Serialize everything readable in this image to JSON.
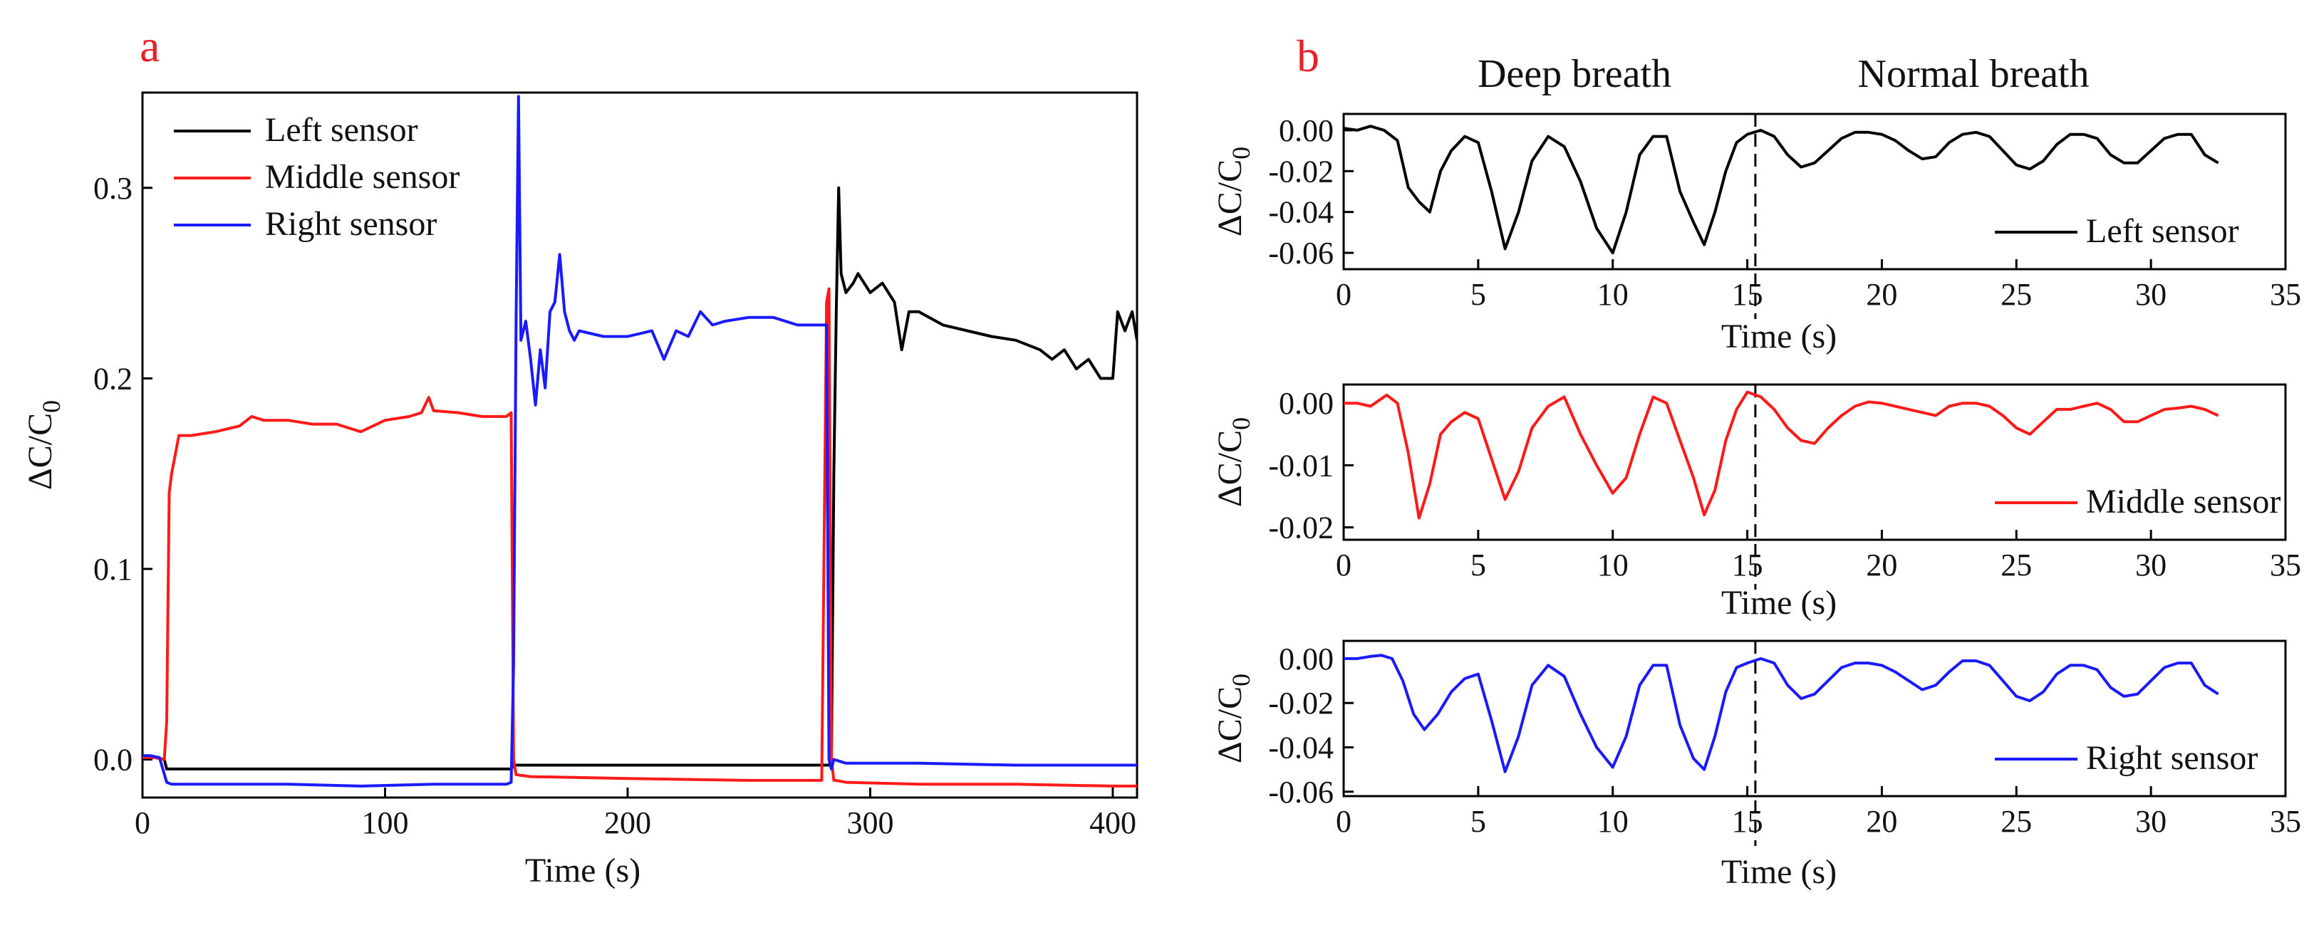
{
  "colors": {
    "left": "#000000",
    "middle": "#ff1a1a",
    "right": "#1a1aff",
    "label": "#e8202a"
  },
  "chart_data": [
    {
      "id": "a",
      "panel_label": "a",
      "type": "line",
      "xlabel": "Time (s)",
      "ylabel": "ΔC/C",
      "ylabel_sub": "0",
      "xlim": [
        0,
        410
      ],
      "ylim": [
        -0.02,
        0.35
      ],
      "xticks": [
        0,
        100,
        200,
        300,
        400
      ],
      "xtick_labels": [
        "0",
        "100",
        "200",
        "300",
        "400"
      ],
      "yticks": [
        0.0,
        0.1,
        0.2,
        0.3
      ],
      "ytick_labels": [
        "0.0",
        "0.1",
        "0.2",
        "0.3"
      ],
      "legend": [
        "Left sensor",
        "Middle sensor",
        "Right sensor"
      ],
      "legend_position": "top-left",
      "series": [
        {
          "name": "Left sensor",
          "color_key": "left",
          "x": [
            0,
            5,
            9,
            10,
            11,
            60,
            120,
            152,
            153,
            154,
            200,
            250,
            283,
            284,
            285,
            286,
            287,
            288,
            290,
            293,
            295,
            300,
            305,
            310,
            313,
            316,
            320,
            330,
            340,
            350,
            360,
            370,
            375,
            380,
            385,
            390,
            395,
            400,
            402,
            405,
            408,
            410
          ],
          "y": [
            0.001,
            0.001,
            0.0,
            -0.005,
            -0.005,
            -0.005,
            -0.005,
            -0.005,
            -0.003,
            -0.003,
            -0.003,
            -0.003,
            -0.003,
            0.0,
            0.15,
            0.235,
            0.3,
            0.255,
            0.245,
            0.25,
            0.255,
            0.245,
            0.25,
            0.24,
            0.215,
            0.235,
            0.235,
            0.228,
            0.225,
            0.222,
            0.22,
            0.215,
            0.21,
            0.215,
            0.205,
            0.21,
            0.2,
            0.2,
            0.235,
            0.225,
            0.235,
            0.22
          ]
        },
        {
          "name": "Middle sensor",
          "color_key": "middle",
          "x": [
            0,
            5,
            9,
            10,
            11,
            12,
            15,
            20,
            30,
            40,
            45,
            50,
            60,
            70,
            80,
            90,
            100,
            110,
            115,
            118,
            120,
            130,
            140,
            150,
            152,
            153,
            154,
            160,
            200,
            250,
            280,
            282,
            283,
            284,
            285,
            286,
            290,
            320,
            360,
            400,
            410
          ],
          "y": [
            0.001,
            0.001,
            0.0,
            0.02,
            0.14,
            0.15,
            0.17,
            0.17,
            0.172,
            0.175,
            0.18,
            0.178,
            0.178,
            0.176,
            0.176,
            0.172,
            0.178,
            0.18,
            0.182,
            0.19,
            0.183,
            0.182,
            0.18,
            0.18,
            0.182,
            0.0,
            -0.008,
            -0.009,
            -0.01,
            -0.011,
            -0.011,
            0.24,
            0.247,
            0.0,
            -0.011,
            -0.011,
            -0.012,
            -0.013,
            -0.013,
            -0.014,
            -0.014
          ]
        },
        {
          "name": "Right sensor",
          "color_key": "right",
          "x": [
            0,
            3,
            7,
            10,
            12,
            30,
            60,
            90,
            120,
            150,
            152,
            153,
            154,
            155,
            156,
            158,
            160,
            162,
            164,
            166,
            168,
            170,
            172,
            174,
            176,
            178,
            180,
            190,
            200,
            210,
            215,
            220,
            225,
            230,
            235,
            240,
            250,
            260,
            270,
            280,
            282,
            283,
            284,
            285,
            290,
            320,
            360,
            400,
            410
          ],
          "y": [
            0.002,
            0.002,
            0.001,
            -0.012,
            -0.013,
            -0.013,
            -0.013,
            -0.014,
            -0.013,
            -0.013,
            -0.012,
            0.05,
            0.23,
            0.348,
            0.22,
            0.23,
            0.21,
            0.186,
            0.215,
            0.195,
            0.235,
            0.24,
            0.265,
            0.235,
            0.225,
            0.22,
            0.225,
            0.222,
            0.222,
            0.225,
            0.21,
            0.225,
            0.222,
            0.235,
            0.228,
            0.23,
            0.232,
            0.232,
            0.228,
            0.228,
            0.228,
            0.0,
            -0.005,
            0.0,
            -0.002,
            -0.002,
            -0.003,
            -0.003,
            -0.003
          ]
        }
      ]
    },
    {
      "id": "b1",
      "panel_label": "b",
      "type": "line",
      "xlabel": "Time (s)",
      "ylabel": "ΔC/C",
      "ylabel_sub": "0",
      "xlim": [
        0,
        35
      ],
      "ylim": [
        -0.068,
        0.008
      ],
      "xticks": [
        0,
        5,
        10,
        15,
        20,
        25,
        30,
        35
      ],
      "xtick_labels": [
        "0",
        "5",
        "10",
        "15",
        "20",
        "25",
        "30",
        "35"
      ],
      "yticks": [
        0.0,
        -0.02,
        -0.04,
        -0.06
      ],
      "ytick_labels": [
        "0.00",
        "-0.02",
        "-0.04",
        "-0.06"
      ],
      "divider_x": 15.3,
      "legend": [
        "Left sensor"
      ],
      "legend_position": "bottom-right",
      "series": [
        {
          "name": "Left sensor",
          "color_key": "left",
          "x": [
            0,
            0.5,
            1.0,
            1.5,
            2.0,
            2.4,
            2.8,
            3.2,
            3.6,
            4.0,
            4.5,
            5.0,
            5.5,
            6.0,
            6.5,
            7.0,
            7.6,
            8.2,
            8.8,
            9.4,
            10.0,
            10.5,
            11.0,
            11.5,
            12.0,
            12.5,
            13.0,
            13.4,
            13.8,
            14.2,
            14.6,
            15.0,
            15.5,
            16.0,
            16.5,
            17.0,
            17.5,
            18.0,
            18.5,
            19.0,
            19.5,
            20.0,
            20.5,
            21.0,
            21.5,
            22.0,
            22.5,
            23.0,
            23.5,
            24.0,
            24.5,
            25.0,
            25.5,
            26.0,
            26.5,
            27.0,
            27.5,
            28.0,
            28.5,
            29.0,
            29.5,
            30.0,
            30.5,
            31.0,
            31.5,
            32.0,
            32.5
          ],
          "y": [
            0.001,
            0.0,
            0.002,
            0.0,
            -0.005,
            -0.028,
            -0.035,
            -0.04,
            -0.02,
            -0.01,
            -0.003,
            -0.006,
            -0.03,
            -0.058,
            -0.04,
            -0.015,
            -0.003,
            -0.008,
            -0.025,
            -0.048,
            -0.06,
            -0.04,
            -0.012,
            -0.003,
            -0.003,
            -0.03,
            -0.045,
            -0.056,
            -0.04,
            -0.02,
            -0.006,
            -0.002,
            0.0,
            -0.003,
            -0.012,
            -0.018,
            -0.016,
            -0.01,
            -0.004,
            -0.001,
            -0.001,
            -0.002,
            -0.005,
            -0.01,
            -0.014,
            -0.013,
            -0.006,
            -0.002,
            -0.001,
            -0.003,
            -0.01,
            -0.017,
            -0.019,
            -0.015,
            -0.007,
            -0.002,
            -0.002,
            -0.004,
            -0.012,
            -0.016,
            -0.016,
            -0.01,
            -0.004,
            -0.002,
            -0.002,
            -0.012,
            -0.016
          ]
        }
      ]
    },
    {
      "id": "b2",
      "panel_label": "",
      "type": "line",
      "xlabel": "Time (s)",
      "ylabel": "ΔC/C",
      "ylabel_sub": "0",
      "xlim": [
        0,
        35
      ],
      "ylim": [
        -0.022,
        0.003
      ],
      "xticks": [
        0,
        5,
        10,
        15,
        20,
        25,
        30,
        35
      ],
      "xtick_labels": [
        "0",
        "5",
        "10",
        "15",
        "20",
        "25",
        "30",
        "35"
      ],
      "yticks": [
        0.0,
        -0.01,
        -0.02
      ],
      "ytick_labels": [
        "0.00",
        "-0.01",
        "-0.02"
      ],
      "divider_x": 15.3,
      "legend": [
        "Middle sensor"
      ],
      "legend_position": "bottom-right",
      "series": [
        {
          "name": "Middle sensor",
          "color_key": "middle",
          "x": [
            0,
            0.5,
            1.0,
            1.6,
            2.0,
            2.4,
            2.8,
            3.2,
            3.6,
            4.0,
            4.5,
            5.0,
            5.5,
            6.0,
            6.5,
            7.0,
            7.6,
            8.2,
            8.8,
            9.4,
            10.0,
            10.5,
            11.0,
            11.5,
            12.0,
            12.5,
            13.0,
            13.4,
            13.8,
            14.2,
            14.6,
            15.0,
            15.5,
            16.0,
            16.5,
            17.0,
            17.5,
            18.0,
            18.5,
            19.0,
            19.5,
            20.0,
            20.5,
            21.0,
            21.5,
            22.0,
            22.5,
            23.0,
            23.5,
            24.0,
            24.5,
            25.0,
            25.5,
            26.0,
            26.5,
            27.0,
            27.5,
            28.0,
            28.5,
            29.0,
            29.5,
            30.0,
            30.5,
            31.0,
            31.5,
            32.0,
            32.5
          ],
          "y": [
            0.0,
            0.0,
            -0.0005,
            0.0013,
            0.0,
            -0.008,
            -0.0185,
            -0.013,
            -0.005,
            -0.003,
            -0.0015,
            -0.0025,
            -0.009,
            -0.0155,
            -0.011,
            -0.004,
            -0.0005,
            0.001,
            -0.005,
            -0.01,
            -0.0145,
            -0.012,
            -0.005,
            0.001,
            0.0,
            -0.006,
            -0.012,
            -0.018,
            -0.014,
            -0.006,
            -0.001,
            0.0018,
            0.001,
            -0.001,
            -0.004,
            -0.006,
            -0.0065,
            -0.004,
            -0.002,
            -0.0005,
            0.0002,
            0.0,
            -0.0005,
            -0.001,
            -0.0015,
            -0.002,
            -0.0005,
            0.0,
            0.0,
            -0.0005,
            -0.002,
            -0.004,
            -0.005,
            -0.003,
            -0.001,
            -0.001,
            -0.0005,
            0.0,
            -0.001,
            -0.003,
            -0.003,
            -0.002,
            -0.001,
            -0.0008,
            -0.0005,
            -0.001,
            -0.002
          ]
        }
      ]
    },
    {
      "id": "b3",
      "panel_label": "",
      "type": "line",
      "xlabel": "Time (s)",
      "ylabel": "ΔC/C",
      "ylabel_sub": "0",
      "xlim": [
        0,
        35
      ],
      "ylim": [
        -0.062,
        0.008
      ],
      "xticks": [
        0,
        5,
        10,
        15,
        20,
        25,
        30,
        35
      ],
      "xtick_labels": [
        "0",
        "5",
        "10",
        "15",
        "20",
        "25",
        "30",
        "35"
      ],
      "yticks": [
        0.0,
        -0.02,
        -0.04,
        -0.06
      ],
      "ytick_labels": [
        "0.00",
        "-0.02",
        "-0.04",
        "-0.06"
      ],
      "divider_x": 15.3,
      "legend": [
        "Right sensor"
      ],
      "legend_position": "bottom-right",
      "series": [
        {
          "name": "Right sensor",
          "color_key": "right",
          "x": [
            0,
            0.5,
            1.0,
            1.4,
            1.8,
            2.2,
            2.6,
            3.0,
            3.5,
            4.0,
            4.5,
            5.0,
            5.5,
            6.0,
            6.5,
            7.0,
            7.6,
            8.2,
            8.8,
            9.4,
            10.0,
            10.5,
            11.0,
            11.5,
            12.0,
            12.5,
            13.0,
            13.4,
            13.8,
            14.2,
            14.6,
            15.0,
            15.5,
            16.0,
            16.5,
            17.0,
            17.5,
            18.0,
            18.5,
            19.0,
            19.5,
            20.0,
            20.5,
            21.0,
            21.5,
            22.0,
            22.5,
            23.0,
            23.5,
            24.0,
            24.5,
            25.0,
            25.5,
            26.0,
            26.5,
            27.0,
            27.5,
            28.0,
            28.5,
            29.0,
            29.5,
            30.0,
            30.5,
            31.0,
            31.5,
            32.0,
            32.5
          ],
          "y": [
            0.0,
            0.0,
            0.001,
            0.0015,
            0.0,
            -0.01,
            -0.025,
            -0.032,
            -0.025,
            -0.015,
            -0.009,
            -0.007,
            -0.028,
            -0.051,
            -0.035,
            -0.012,
            -0.003,
            -0.008,
            -0.025,
            -0.04,
            -0.049,
            -0.035,
            -0.012,
            -0.003,
            -0.003,
            -0.03,
            -0.045,
            -0.05,
            -0.035,
            -0.015,
            -0.004,
            -0.002,
            0.0,
            -0.002,
            -0.012,
            -0.018,
            -0.016,
            -0.01,
            -0.004,
            -0.002,
            -0.002,
            -0.003,
            -0.006,
            -0.01,
            -0.014,
            -0.012,
            -0.006,
            -0.001,
            -0.001,
            -0.003,
            -0.01,
            -0.017,
            -0.019,
            -0.015,
            -0.007,
            -0.003,
            -0.003,
            -0.005,
            -0.013,
            -0.017,
            -0.016,
            -0.01,
            -0.004,
            -0.002,
            -0.002,
            -0.012,
            -0.016
          ]
        }
      ]
    }
  ],
  "panel_b_headers": {
    "deep": "Deep breath",
    "normal": "Normal breath"
  }
}
